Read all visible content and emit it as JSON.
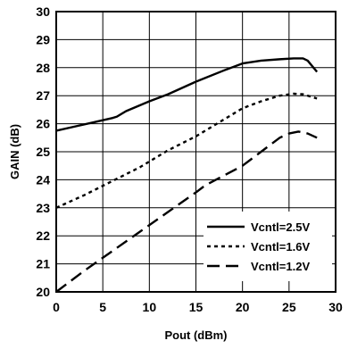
{
  "chart_data": {
    "type": "line",
    "title": "",
    "xlabel": "Pout (dBm)",
    "ylabel": "GAIN (dB)",
    "xlim": [
      0,
      30
    ],
    "ylim": [
      20,
      30
    ],
    "xticks": [
      "0",
      "5",
      "10",
      "15",
      "20",
      "25",
      "30"
    ],
    "yticks": [
      "20",
      "21",
      "22",
      "23",
      "24",
      "25",
      "26",
      "27",
      "28",
      "29",
      "30"
    ],
    "grid": true,
    "legend_position": "bottom-right",
    "series": [
      {
        "name": "Vcntl=2.5V",
        "line_style": "solid",
        "x": [
          0,
          2,
          4,
          6,
          6.5,
          7.5,
          10,
          12,
          15,
          18,
          20,
          22,
          24,
          25.5,
          26.5,
          27,
          28
        ],
        "y": [
          25.75,
          25.9,
          26.05,
          26.2,
          26.25,
          26.45,
          26.8,
          27.05,
          27.5,
          27.9,
          28.15,
          28.25,
          28.3,
          28.33,
          28.33,
          28.25,
          27.85
        ]
      },
      {
        "name": "Vcntl=1.6V",
        "line_style": "dotted",
        "x": [
          0,
          3,
          6,
          9,
          12,
          15,
          18,
          20,
          22,
          24,
          25.5,
          26.5,
          27.5,
          28
        ],
        "y": [
          23.0,
          23.45,
          23.95,
          24.45,
          25.05,
          25.55,
          26.15,
          26.55,
          26.8,
          27.0,
          27.07,
          27.05,
          26.95,
          26.9
        ]
      },
      {
        "name": "Vcntl=1.2V",
        "line_style": "dashed",
        "x": [
          0,
          3,
          6,
          9,
          12,
          15,
          16,
          18,
          20,
          22,
          24,
          25,
          26,
          27,
          28
        ],
        "y": [
          20.0,
          20.75,
          21.45,
          22.15,
          22.85,
          23.55,
          23.8,
          24.15,
          24.5,
          25.0,
          25.5,
          25.65,
          25.72,
          25.65,
          25.5
        ]
      }
    ]
  }
}
